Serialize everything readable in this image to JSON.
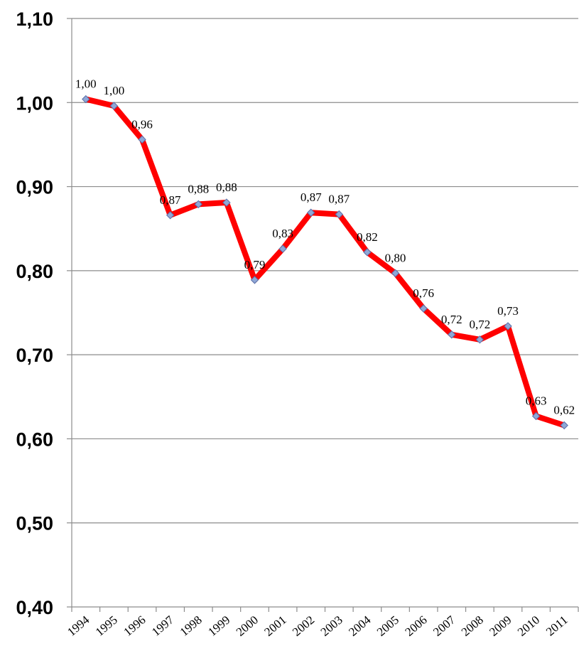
{
  "chart_data": {
    "type": "line",
    "title": "",
    "xlabel": "",
    "ylabel": "",
    "ylim": [
      0.4,
      1.1
    ],
    "y_ticks": [
      "0,40",
      "0,50",
      "0,60",
      "0,70",
      "0,80",
      "0,90",
      "1,00",
      "1,10"
    ],
    "grid": true,
    "legend": "none",
    "categories": [
      "1994",
      "1995",
      "1996",
      "1997",
      "1998",
      "1999",
      "2000",
      "2001",
      "2002",
      "2003",
      "2004",
      "2005",
      "2006",
      "2007",
      "2008",
      "2009",
      "2010",
      "2011"
    ],
    "series": [
      {
        "name": "",
        "color": "#ff0000",
        "marker_color": "#8fa7d6",
        "values": [
          1.004,
          0.996,
          0.956,
          0.866,
          0.879,
          0.881,
          0.789,
          0.826,
          0.869,
          0.867,
          0.822,
          0.797,
          0.755,
          0.724,
          0.718,
          0.734,
          0.627,
          0.616
        ],
        "labels": [
          "1,00",
          "1,00",
          "0,96",
          "0,87",
          "0,88",
          "0,88",
          "0,79",
          "0,83",
          "0,87",
          "0,87",
          "0,82",
          "0,80",
          "0,76",
          "0,72",
          "0,72",
          "0,73",
          "0,63",
          "0,62"
        ]
      }
    ]
  }
}
